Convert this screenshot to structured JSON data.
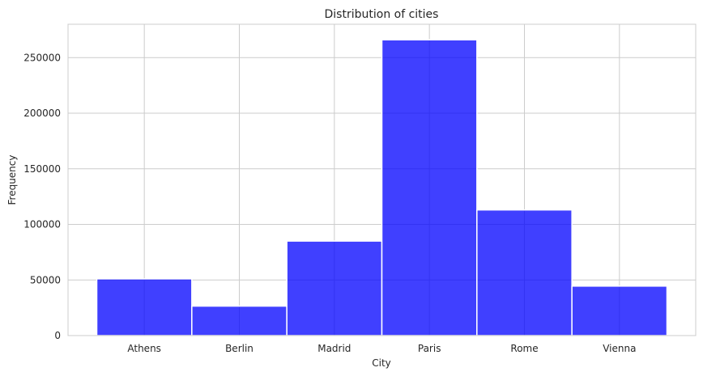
{
  "chart_data": {
    "type": "bar",
    "title": "Distribution of cities",
    "xlabel": "City",
    "ylabel": "Frequency",
    "categories": [
      "Athens",
      "Berlin",
      "Madrid",
      "Paris",
      "Rome",
      "Vienna"
    ],
    "values": [
      51000,
      26500,
      85000,
      266000,
      113000,
      44500
    ],
    "ylim": [
      0,
      280000
    ],
    "yticks": [
      0,
      50000,
      100000,
      150000,
      200000,
      250000
    ],
    "ytick_labels": [
      "0",
      "50000",
      "100000",
      "150000",
      "200000",
      "250000"
    ],
    "grid": true,
    "bar_color": "#0000ff",
    "bar_opacity": 0.75
  }
}
